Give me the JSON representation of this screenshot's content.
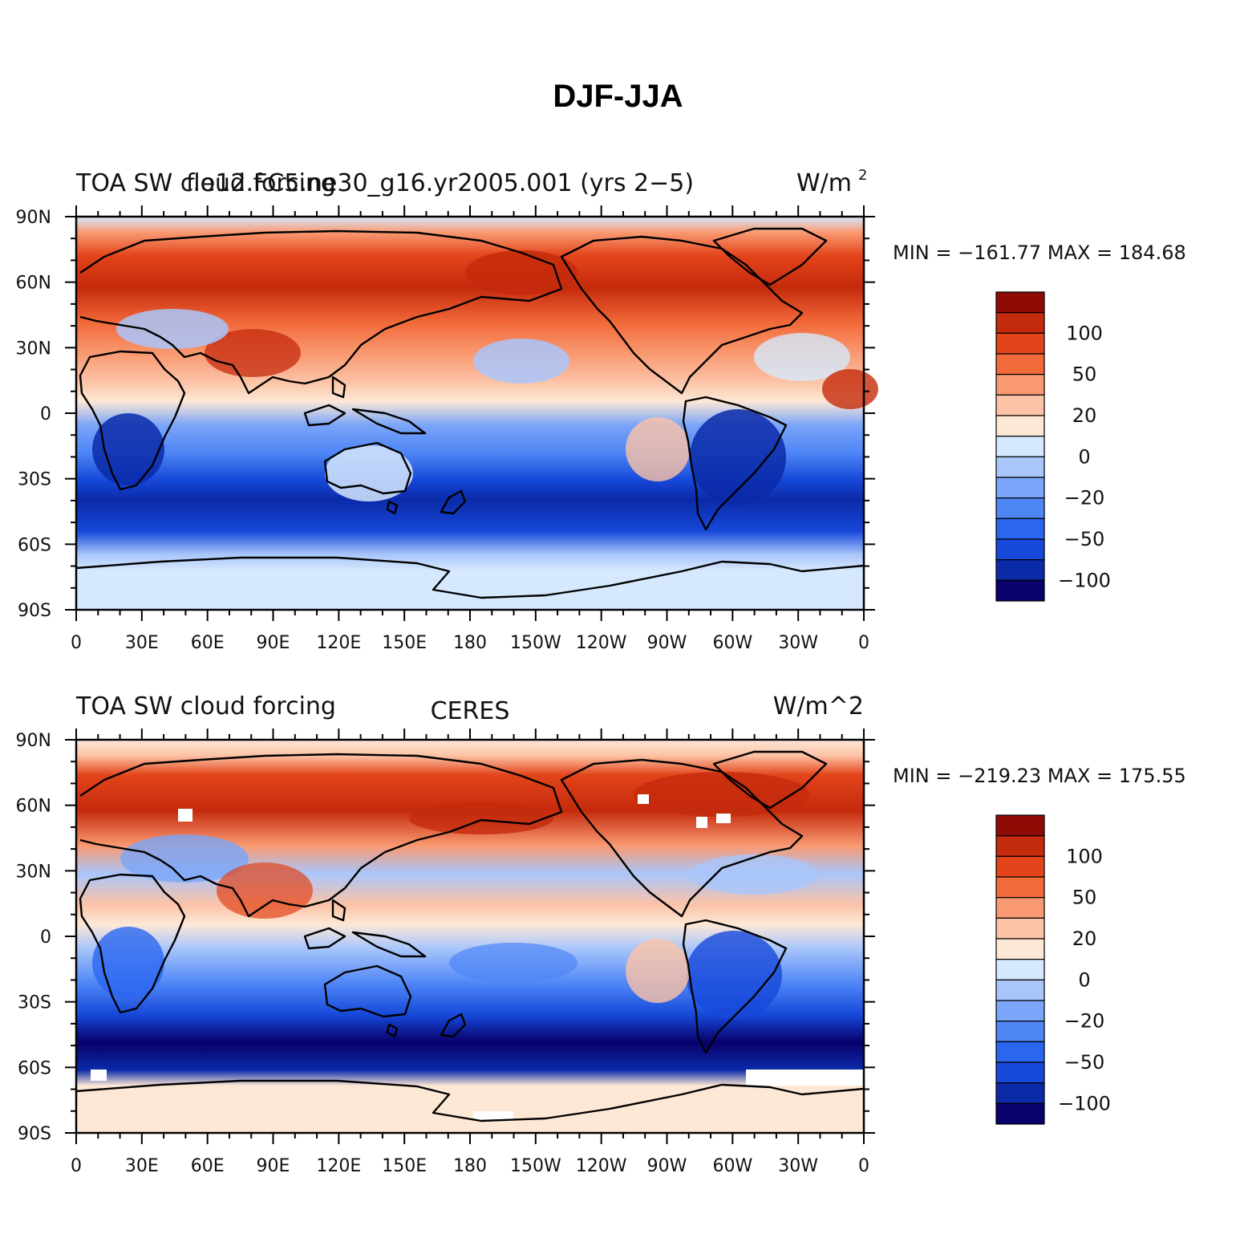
{
  "title": "DJF-JJA",
  "units_sup": "2",
  "palette": [
    "#08006b",
    "#0b2aa8",
    "#1648d9",
    "#2a66f0",
    "#4f86f6",
    "#7aa5f8",
    "#a9c6fb",
    "#d6e8fd",
    "#fde8d6",
    "#fcc3a6",
    "#f99a72",
    "#f26a3a",
    "#e3441a",
    "#c42a0c",
    "#8f0b06"
  ],
  "colorbar_labels": [
    "100",
    "50",
    "20",
    "0",
    "−20",
    "−50",
    "−100"
  ],
  "x_ticks": [
    "0",
    "30E",
    "60E",
    "90E",
    "120E",
    "150E",
    "180",
    "150W",
    "120W",
    "90W",
    "60W",
    "30W",
    "0"
  ],
  "y_ticks": [
    "90N",
    "60N",
    "30N",
    "0",
    "30S",
    "60S",
    "90S"
  ],
  "panels": [
    {
      "left_title_a": "TOA SW cloud forcing",
      "left_title_b": "f.e12.FC5.ne30_g16.yr2005.001 (yrs 2−5)",
      "center_title": "",
      "units": "W/m",
      "minmax": "MIN = −161.77   MAX = 184.68"
    },
    {
      "left_title_a": "TOA SW cloud forcing",
      "left_title_b": "",
      "center_title": "CERES",
      "units": "W/m^2",
      "minmax": "MIN = −219.23   MAX = 175.55"
    }
  ]
}
